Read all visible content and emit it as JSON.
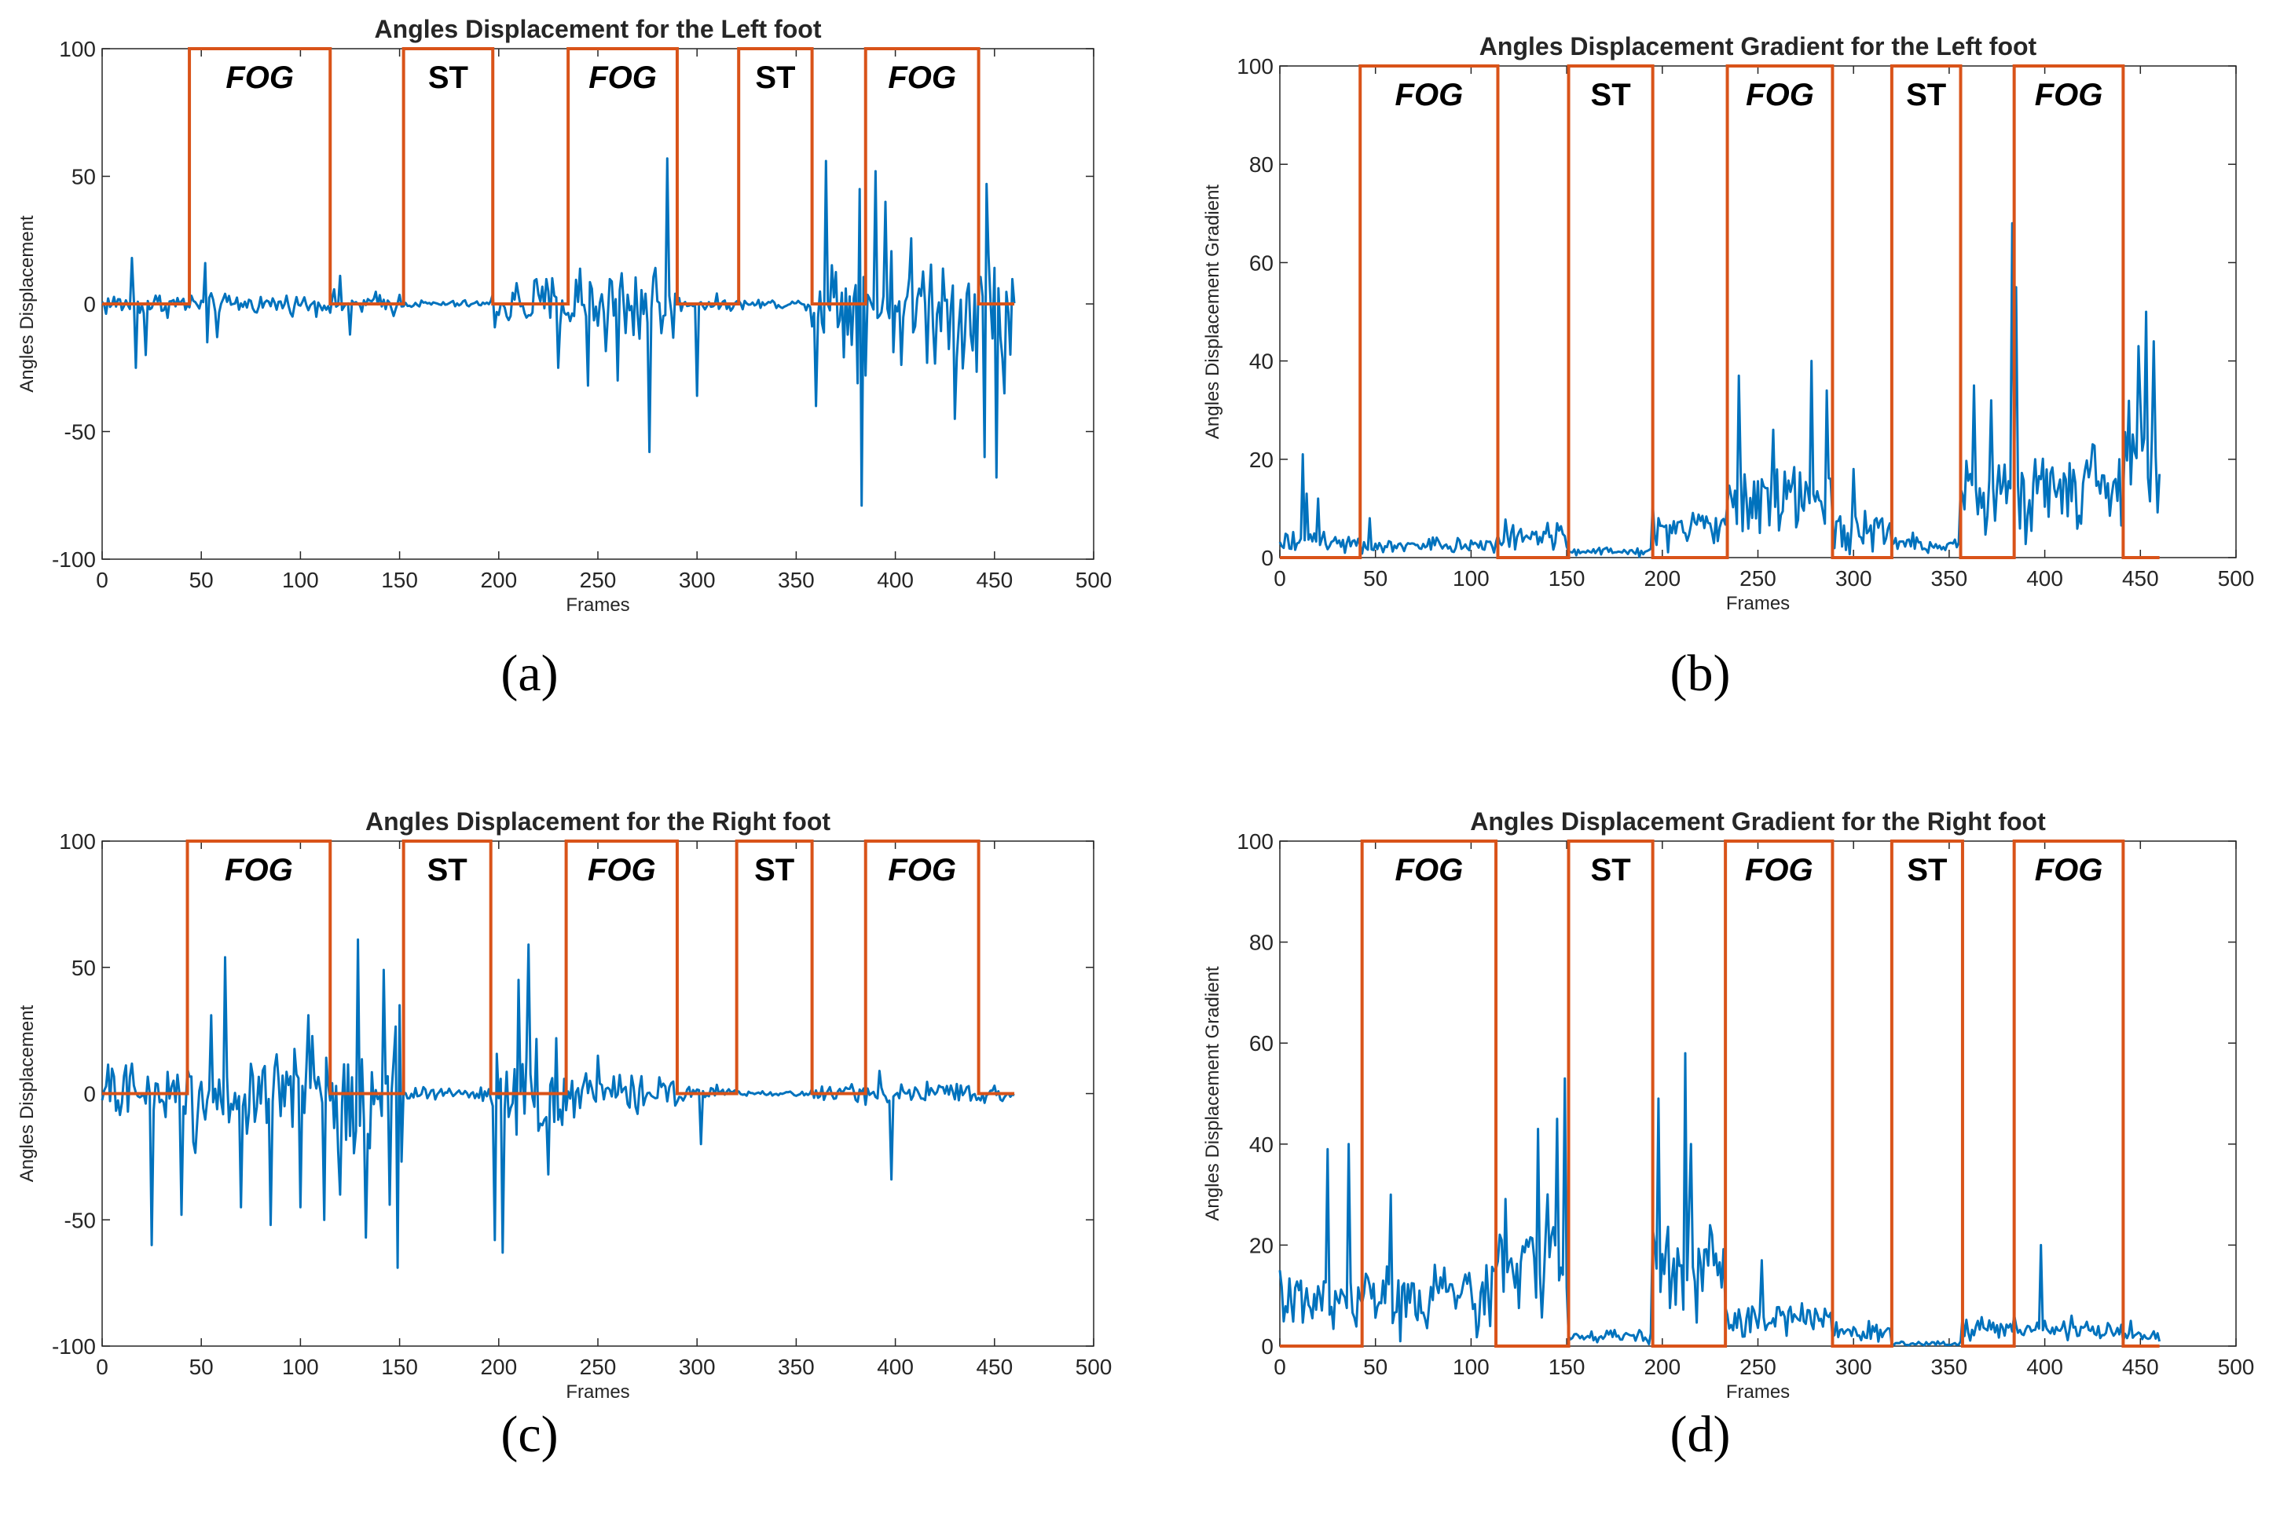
{
  "colors": {
    "signal": "#0072BD",
    "segments": "#D95319",
    "axis": "#262626"
  },
  "chart_data": [
    {
      "id": "a",
      "type": "line",
      "caption": "(a)",
      "title": "Angles Displacement for the Left foot",
      "xlabel": "Frames",
      "ylabel": "Angles Displacement",
      "xlim": [
        0,
        500
      ],
      "ylim": [
        -100,
        100
      ],
      "xticks": [
        0,
        50,
        100,
        150,
        200,
        250,
        300,
        350,
        400,
        450,
        500
      ],
      "yticks": [
        -100,
        -50,
        0,
        50,
        100
      ],
      "segment_baseline": 0,
      "segment_top": 100,
      "segments": [
        {
          "label": "FOG",
          "start": 44,
          "end": 115
        },
        {
          "label": "ST",
          "start": 152,
          "end": 197
        },
        {
          "label": "FOG",
          "start": 235,
          "end": 290
        },
        {
          "label": "ST",
          "start": 321,
          "end": 358
        },
        {
          "label": "FOG",
          "start": 385,
          "end": 442
        }
      ],
      "signal_shape": {
        "frames": 460,
        "baseline": 0,
        "noise_ranges": [
          [
            0,
            44,
            5
          ],
          [
            44,
            115,
            4
          ],
          [
            115,
            152,
            5
          ],
          [
            152,
            197,
            1.5
          ],
          [
            197,
            235,
            12
          ],
          [
            235,
            290,
            20
          ],
          [
            290,
            321,
            3
          ],
          [
            321,
            358,
            2
          ],
          [
            358,
            442,
            25
          ],
          [
            442,
            460,
            30
          ]
        ],
        "spikes": [
          [
            15,
            18
          ],
          [
            17,
            -25
          ],
          [
            22,
            -20
          ],
          [
            52,
            16
          ],
          [
            53,
            -15
          ],
          [
            58,
            -13
          ],
          [
            120,
            11
          ],
          [
            125,
            -12
          ],
          [
            230,
            -25
          ],
          [
            245,
            -32
          ],
          [
            260,
            -30
          ],
          [
            276,
            -58
          ],
          [
            285,
            57
          ],
          [
            300,
            -36
          ],
          [
            360,
            -40
          ],
          [
            365,
            56
          ],
          [
            383,
            -79
          ],
          [
            382,
            45
          ],
          [
            390,
            52
          ],
          [
            395,
            40
          ],
          [
            430,
            -45
          ],
          [
            445,
            -60
          ],
          [
            451,
            -68
          ],
          [
            446,
            47
          ],
          [
            455,
            -35
          ]
        ]
      }
    },
    {
      "id": "b",
      "type": "line",
      "caption": "(b)",
      "title": "Angles Displacement Gradient for the Left foot",
      "xlabel": "Frames",
      "ylabel": "Angles Displacement Gradient",
      "xlim": [
        0,
        500
      ],
      "ylim": [
        0,
        100
      ],
      "xticks": [
        0,
        50,
        100,
        150,
        200,
        250,
        300,
        350,
        400,
        450,
        500
      ],
      "yticks": [
        0,
        20,
        40,
        60,
        80,
        100
      ],
      "segment_baseline": 0,
      "segment_top": 100,
      "segments": [
        {
          "label": "FOG",
          "start": 42,
          "end": 114
        },
        {
          "label": "ST",
          "start": 151,
          "end": 195
        },
        {
          "label": "FOG",
          "start": 234,
          "end": 289
        },
        {
          "label": "ST",
          "start": 320,
          "end": 356
        },
        {
          "label": "FOG",
          "start": 384,
          "end": 441
        }
      ],
      "signal_shape": {
        "frames": 460,
        "baseline": 1,
        "noise_ranges": [
          [
            0,
            42,
            5
          ],
          [
            42,
            114,
            4
          ],
          [
            114,
            151,
            7
          ],
          [
            151,
            195,
            1.5
          ],
          [
            195,
            234,
            9
          ],
          [
            234,
            289,
            18
          ],
          [
            289,
            320,
            8
          ],
          [
            320,
            356,
            4
          ],
          [
            356,
            441,
            22
          ],
          [
            441,
            460,
            30
          ]
        ],
        "spikes": [
          [
            12,
            21
          ],
          [
            14,
            13
          ],
          [
            20,
            12
          ],
          [
            47,
            8
          ],
          [
            240,
            37
          ],
          [
            258,
            26
          ],
          [
            278,
            40
          ],
          [
            286,
            34
          ],
          [
            300,
            18
          ],
          [
            363,
            35
          ],
          [
            372,
            32
          ],
          [
            383,
            68
          ],
          [
            385,
            55
          ],
          [
            395,
            20
          ],
          [
            449,
            43
          ],
          [
            453,
            50
          ],
          [
            457,
            44
          ],
          [
            460,
            17
          ]
        ]
      }
    },
    {
      "id": "c",
      "type": "line",
      "caption": "(c)",
      "title": "Angles Displacement for the Right foot",
      "xlabel": "Frames",
      "ylabel": "Angles Displacement",
      "xlim": [
        0,
        500
      ],
      "ylim": [
        -100,
        100
      ],
      "xticks": [
        0,
        50,
        100,
        150,
        200,
        250,
        300,
        350,
        400,
        450,
        500
      ],
      "yticks": [
        -100,
        -50,
        0,
        50,
        100
      ],
      "segment_baseline": 0,
      "segment_top": 100,
      "segments": [
        {
          "label": "FOG",
          "start": 43,
          "end": 115
        },
        {
          "label": "ST",
          "start": 152,
          "end": 196
        },
        {
          "label": "FOG",
          "start": 234,
          "end": 290
        },
        {
          "label": "ST",
          "start": 320,
          "end": 358
        },
        {
          "label": "FOG",
          "start": 385,
          "end": 442
        }
      ],
      "signal_shape": {
        "frames": 460,
        "baseline": 0,
        "noise_ranges": [
          [
            0,
            43,
            12
          ],
          [
            43,
            115,
            20
          ],
          [
            115,
            152,
            25
          ],
          [
            152,
            196,
            3
          ],
          [
            196,
            234,
            20
          ],
          [
            234,
            290,
            8
          ],
          [
            290,
            320,
            3
          ],
          [
            320,
            358,
            1
          ],
          [
            358,
            442,
            4
          ],
          [
            442,
            460,
            3
          ]
        ],
        "spikes": [
          [
            25,
            -60
          ],
          [
            40,
            -48
          ],
          [
            55,
            31
          ],
          [
            62,
            54
          ],
          [
            70,
            -45
          ],
          [
            85,
            -52
          ],
          [
            100,
            -45
          ],
          [
            104,
            31
          ],
          [
            112,
            -50
          ],
          [
            120,
            -40
          ],
          [
            129,
            61
          ],
          [
            133,
            -57
          ],
          [
            142,
            49
          ],
          [
            145,
            -44
          ],
          [
            149,
            -69
          ],
          [
            150,
            35
          ],
          [
            198,
            -58
          ],
          [
            202,
            -63
          ],
          [
            210,
            45
          ],
          [
            215,
            59
          ],
          [
            225,
            -32
          ],
          [
            250,
            15
          ],
          [
            302,
            -20
          ],
          [
            398,
            -34
          ],
          [
            392,
            9
          ]
        ]
      }
    },
    {
      "id": "d",
      "type": "line",
      "caption": "(d)",
      "title": "Angles Displacement Gradient for the Right foot",
      "xlabel": "Frames",
      "ylabel": "Angles Displacement Gradient",
      "xlim": [
        0,
        500
      ],
      "ylim": [
        0,
        100
      ],
      "xticks": [
        0,
        50,
        100,
        150,
        200,
        250,
        300,
        350,
        400,
        450,
        500
      ],
      "yticks": [
        0,
        20,
        40,
        60,
        80,
        100
      ],
      "segment_baseline": 0,
      "segment_top": 100,
      "segments": [
        {
          "label": "FOG",
          "start": 43,
          "end": 113
        },
        {
          "label": "ST",
          "start": 151,
          "end": 195
        },
        {
          "label": "FOG",
          "start": 233,
          "end": 289
        },
        {
          "label": "ST",
          "start": 320,
          "end": 357
        },
        {
          "label": "FOG",
          "start": 384,
          "end": 441
        }
      ],
      "signal_shape": {
        "frames": 460,
        "baseline": 1,
        "noise_ranges": [
          [
            0,
            43,
            14
          ],
          [
            43,
            113,
            16
          ],
          [
            113,
            151,
            25
          ],
          [
            151,
            195,
            3
          ],
          [
            195,
            233,
            25
          ],
          [
            233,
            289,
            8
          ],
          [
            289,
            320,
            4
          ],
          [
            320,
            357,
            0.5
          ],
          [
            357,
            441,
            5
          ],
          [
            441,
            460,
            3
          ]
        ],
        "spikes": [
          [
            0,
            15
          ],
          [
            25,
            39
          ],
          [
            36,
            40
          ],
          [
            58,
            30
          ],
          [
            135,
            43
          ],
          [
            145,
            45
          ],
          [
            149,
            53
          ],
          [
            198,
            49
          ],
          [
            212,
            58
          ],
          [
            215,
            40
          ],
          [
            252,
            17
          ],
          [
            398,
            20
          ],
          [
            445,
            5
          ]
        ]
      }
    }
  ]
}
